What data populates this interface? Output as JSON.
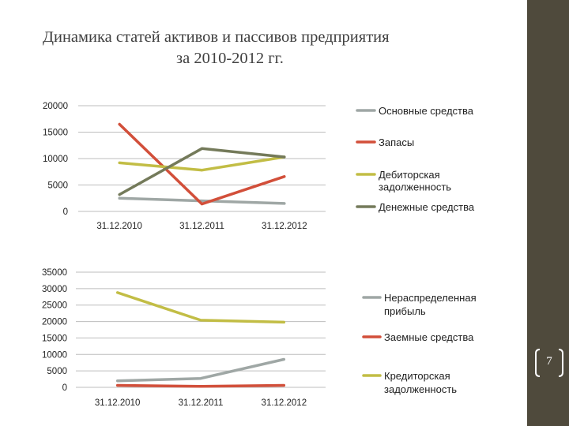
{
  "slide": {
    "title_line1": "Динамика статей активов и пассивов предприятия",
    "title_line2": "за 2010-2012 гг.",
    "page_number": "7"
  },
  "colors": {
    "sidebar": "#4f4a3c",
    "grid": "#bdbdbd",
    "gray": "#9fa7a5",
    "red": "#d24f3a",
    "olive": "#c2bd45",
    "dark_olive": "#747a5a"
  },
  "chart_data": [
    {
      "type": "line",
      "categories": [
        "31.12.2010",
        "31.12.2011",
        "31.12.2012"
      ],
      "ylim": [
        0,
        20000
      ],
      "yticks": [
        0,
        5000,
        10000,
        15000,
        20000
      ],
      "grid": true,
      "legend_position": "right",
      "series": [
        {
          "name": "Основные средства",
          "legend_lines": [
            "Основные средства"
          ],
          "color": "#9fa7a5",
          "values": [
            2500,
            2000,
            1500
          ]
        },
        {
          "name": "Запасы",
          "legend_lines": [
            "Запасы"
          ],
          "color": "#d24f3a",
          "values": [
            16500,
            1400,
            6600
          ]
        },
        {
          "name": "Дебиторская задолженность",
          "legend_lines": [
            "Дебиторская",
            "задолженность"
          ],
          "color": "#c2bd45",
          "values": [
            9200,
            7800,
            10300
          ]
        },
        {
          "name": "Денежные средства",
          "legend_lines": [
            "Денежные средства"
          ],
          "color": "#747a5a",
          "values": [
            3200,
            11900,
            10300
          ]
        }
      ]
    },
    {
      "type": "line",
      "categories": [
        "31.12.2010",
        "31.12.2011",
        "31.12.2012"
      ],
      "ylim": [
        0,
        35000
      ],
      "yticks": [
        0,
        5000,
        10000,
        15000,
        20000,
        25000,
        30000,
        35000
      ],
      "grid": true,
      "legend_position": "right",
      "series": [
        {
          "name": "Нераспределенная прибыль",
          "legend_lines": [
            "Нераспределенная",
            "прибыль"
          ],
          "color": "#9fa7a5",
          "values": [
            2000,
            2700,
            8500
          ]
        },
        {
          "name": "Заемные средства",
          "legend_lines": [
            "Заемные средства"
          ],
          "color": "#d24f3a",
          "values": [
            600,
            300,
            600
          ]
        },
        {
          "name": "Кредиторская задолженность",
          "legend_lines": [
            "Кредиторская",
            "задолженность"
          ],
          "color": "#c2bd45",
          "values": [
            28800,
            20400,
            19800
          ]
        }
      ]
    }
  ]
}
